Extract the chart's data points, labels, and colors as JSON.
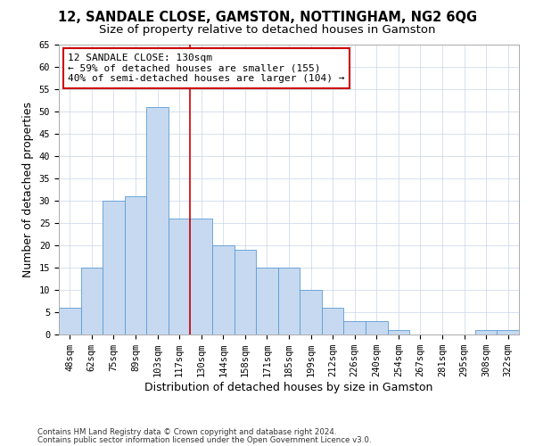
{
  "title1": "12, SANDALE CLOSE, GAMSTON, NOTTINGHAM, NG2 6QG",
  "title2": "Size of property relative to detached houses in Gamston",
  "xlabel": "Distribution of detached houses by size in Gamston",
  "ylabel": "Number of detached properties",
  "categories": [
    "48sqm",
    "62sqm",
    "75sqm",
    "89sqm",
    "103sqm",
    "117sqm",
    "130sqm",
    "144sqm",
    "158sqm",
    "171sqm",
    "185sqm",
    "199sqm",
    "212sqm",
    "226sqm",
    "240sqm",
    "254sqm",
    "267sqm",
    "281sqm",
    "295sqm",
    "308sqm",
    "322sqm"
  ],
  "values": [
    6,
    15,
    30,
    31,
    51,
    26,
    26,
    20,
    19,
    15,
    15,
    10,
    6,
    3,
    3,
    1,
    0,
    0,
    0,
    1,
    1
  ],
  "bar_color": "#c6d9f0",
  "bar_edge_color": "#5b9bd5",
  "vline_color": "#cc0000",
  "vline_index": 5.5,
  "annotation_text": "12 SANDALE CLOSE: 130sqm\n← 59% of detached houses are smaller (155)\n40% of semi-detached houses are larger (104) →",
  "annotation_box_color": "#ffffff",
  "annotation_box_edge_color": "#cc0000",
  "ylim_max": 65,
  "yticks": [
    0,
    5,
    10,
    15,
    20,
    25,
    30,
    35,
    40,
    45,
    50,
    55,
    60,
    65
  ],
  "footer1": "Contains HM Land Registry data © Crown copyright and database right 2024.",
  "footer2": "Contains public sector information licensed under the Open Government Licence v3.0.",
  "bg_color": "#ffffff",
  "grid_color": "#c8d4e8"
}
